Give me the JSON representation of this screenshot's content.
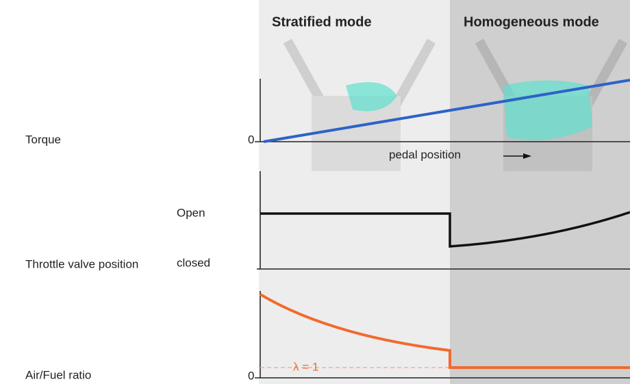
{
  "header": {
    "modes": [
      "Stratified mode",
      "Homogeneous mode"
    ]
  },
  "panels": [
    {
      "label": "Torque",
      "zero": "0",
      "x_label": "pedal position"
    },
    {
      "label": "Throttle valve position",
      "upper": "Open",
      "lower": "closed"
    },
    {
      "label": "Air/Fuel ratio",
      "zero": "0",
      "reference": "λ = 1"
    }
  ]
}
